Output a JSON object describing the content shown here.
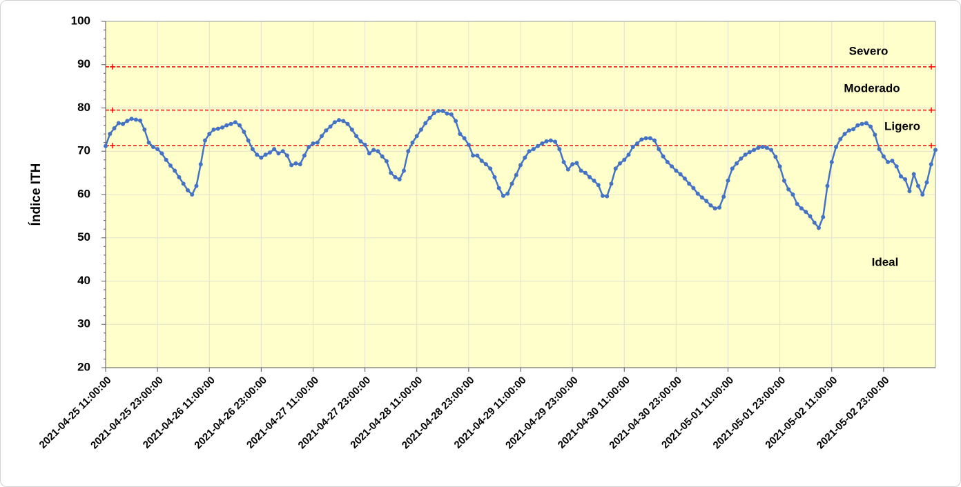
{
  "chart_data": {
    "type": "line",
    "ylabel": "Índice ITH",
    "ylim": [
      20,
      100
    ],
    "yticks": [
      20,
      30,
      40,
      50,
      60,
      70,
      80,
      90,
      100
    ],
    "grid": true,
    "background": "#ffffcc",
    "categories": [
      "2021-04-25 11:00:00",
      null,
      null,
      null,
      null,
      null,
      null,
      null,
      null,
      null,
      null,
      null,
      "2021-04-25 23:00:00",
      null,
      null,
      null,
      null,
      null,
      null,
      null,
      null,
      null,
      null,
      null,
      "2021-04-26 11:00:00",
      null,
      null,
      null,
      null,
      null,
      null,
      null,
      null,
      null,
      null,
      null,
      "2021-04-26 23:00:00",
      null,
      null,
      null,
      null,
      null,
      null,
      null,
      null,
      null,
      null,
      null,
      "2021-04-27 11:00:00",
      null,
      null,
      null,
      null,
      null,
      null,
      null,
      null,
      null,
      null,
      null,
      "2021-04-27 23:00:00",
      null,
      null,
      null,
      null,
      null,
      null,
      null,
      null,
      null,
      null,
      null,
      "2021-04-28 11:00:00",
      null,
      null,
      null,
      null,
      null,
      null,
      null,
      null,
      null,
      null,
      null,
      "2021-04-28 23:00:00",
      null,
      null,
      null,
      null,
      null,
      null,
      null,
      null,
      null,
      null,
      null,
      "2021-04-29 11:00:00",
      null,
      null,
      null,
      null,
      null,
      null,
      null,
      null,
      null,
      null,
      null,
      "2021-04-29 23:00:00",
      null,
      null,
      null,
      null,
      null,
      null,
      null,
      null,
      null,
      null,
      null,
      "2021-04-30 11:00:00",
      null,
      null,
      null,
      null,
      null,
      null,
      null,
      null,
      null,
      null,
      null,
      "2021-04-30 23:00:00",
      null,
      null,
      null,
      null,
      null,
      null,
      null,
      null,
      null,
      null,
      null,
      "2021-05-01 11:00:00",
      null,
      null,
      null,
      null,
      null,
      null,
      null,
      null,
      null,
      null,
      null,
      "2021-05-01 23:00:00",
      null,
      null,
      null,
      null,
      null,
      null,
      null,
      null,
      null,
      null,
      null,
      "2021-05-02 11:00:00",
      null,
      null,
      null,
      null,
      null,
      null,
      null,
      null,
      null,
      null,
      null,
      "2021-05-02 23:00:00",
      null,
      null,
      null,
      null,
      null,
      null,
      null,
      null,
      null,
      null,
      null,
      null
    ],
    "series": [
      {
        "color": "#4472c4",
        "values": [
          71.2,
          74,
          75.3,
          76.5,
          76.3,
          77,
          77.5,
          77.3,
          77.1,
          75,
          72,
          71,
          70.5,
          69.5,
          68,
          66.7,
          65.5,
          64,
          62.5,
          61,
          60,
          62,
          67,
          72.5,
          74,
          75,
          75.2,
          75.5,
          76,
          76.3,
          76.7,
          76,
          74.5,
          72.5,
          70.5,
          69.2,
          68.5,
          69.2,
          69.7,
          70.5,
          69.5,
          70,
          69,
          66.8,
          67.2,
          67,
          69,
          71,
          71.8,
          72,
          73.5,
          74.8,
          75.7,
          76.7,
          77.2,
          77,
          76.3,
          75,
          73.5,
          72.3,
          71.5,
          69.5,
          70.3,
          70,
          68.8,
          67.7,
          65,
          64,
          63.5,
          65.5,
          70,
          72,
          73.5,
          75,
          76.5,
          77.7,
          78.8,
          79.3,
          79.3,
          78.7,
          78.5,
          77,
          74,
          73,
          71.5,
          69,
          69,
          67.8,
          67,
          66,
          64,
          61.5,
          59.7,
          60.2,
          62.5,
          64.5,
          66.8,
          68.5,
          70,
          70.5,
          71.2,
          71.8,
          72.3,
          72.5,
          72.2,
          70.5,
          67.5,
          65.8,
          67,
          67.3,
          65.5,
          65,
          64,
          63.2,
          62.2,
          59.7,
          59.6,
          62.5,
          66,
          67.2,
          68,
          69.2,
          71,
          71.8,
          72.7,
          73,
          73,
          72.5,
          70.5,
          68.8,
          67.5,
          66.5,
          65.5,
          64.7,
          63.7,
          62.5,
          61.5,
          60.2,
          59.3,
          58.5,
          57.5,
          56.8,
          57,
          59.5,
          63.2,
          66,
          67.2,
          68.3,
          69.2,
          69.8,
          70.3,
          70.8,
          71,
          70.8,
          70.3,
          68.7,
          66.5,
          63.2,
          61.2,
          60,
          57.8,
          56.8,
          56,
          55,
          53.5,
          52.3,
          54.8,
          62,
          67.5,
          71,
          72.8,
          74,
          74.8,
          75.1,
          76,
          76.3,
          76.5,
          75.7,
          73.8,
          70.5,
          68.8,
          67.5,
          67.8,
          66.5,
          64.2,
          63.5,
          60.8,
          64.7,
          62,
          60,
          62.8,
          67,
          70.3
        ]
      }
    ],
    "thresholds": [
      {
        "value": 89.5,
        "color": "#ff0000"
      },
      {
        "value": 79.5,
        "color": "#ff0000"
      },
      {
        "value": 71.3,
        "color": "#ff0000"
      }
    ],
    "annotations": [
      "Severo",
      "Moderado",
      "Ligero",
      "Ideal"
    ]
  }
}
